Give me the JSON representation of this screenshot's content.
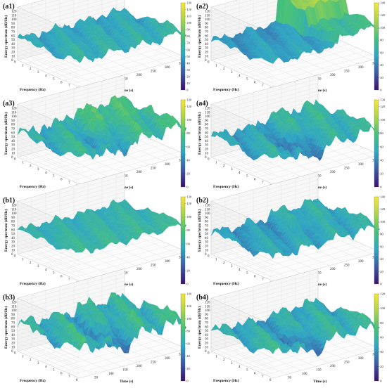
{
  "figure": {
    "panels": [
      {
        "label": "(a1)",
        "cbar": {
          "max": 130,
          "ticks": [
            130,
            120,
            110,
            100,
            90,
            80,
            70,
            60,
            50,
            40,
            30,
            20,
            10,
            0
          ]
        }
      },
      {
        "label": "(a2)",
        "cbar": {
          "max": 140,
          "ticks": [
            140,
            120,
            100,
            80,
            60,
            40,
            20,
            0
          ]
        }
      },
      {
        "label": "(a3)",
        "cbar": {
          "max": 130,
          "ticks": [
            130,
            120,
            100,
            80,
            60,
            40,
            20,
            0
          ]
        }
      },
      {
        "label": "(a4)",
        "cbar": {
          "max": 130,
          "ticks": [
            130,
            120,
            100,
            80,
            60,
            40,
            20,
            0
          ]
        }
      },
      {
        "label": "(b1)",
        "cbar": {
          "max": 130,
          "ticks": [
            130,
            120,
            100,
            80,
            60,
            40,
            20,
            0
          ]
        }
      },
      {
        "label": "(b2)",
        "cbar": {
          "max": 140,
          "ticks": [
            140,
            120,
            100,
            80,
            60,
            40,
            20,
            0
          ]
        }
      },
      {
        "label": "(b3)",
        "cbar": {
          "max": 140,
          "ticks": [
            140,
            120,
            100,
            80,
            60,
            40,
            20,
            0
          ]
        }
      },
      {
        "label": "(b4)",
        "cbar": {
          "max": 120,
          "ticks": [
            120,
            100,
            80,
            60,
            40,
            20,
            0
          ]
        }
      }
    ],
    "colorscale": [
      "#3b0f70",
      "#3b5ba8",
      "#2fa7c4",
      "#45c07a",
      "#a8d44a",
      "#f6e63a"
    ]
  },
  "chart_data": {
    "type": "surface",
    "xlabel": "Time (s)",
    "ylabel": "Frequency (Hz)",
    "zlabel": "Energy spectrum (dB/Hz)",
    "x_ticks": [
      50,
      100,
      150,
      200,
      250,
      300,
      350
    ],
    "y_ticks": [
      0,
      1,
      2,
      3,
      4,
      5,
      6,
      7,
      8
    ],
    "z_ticks": [
      0,
      10,
      20,
      30,
      40,
      50,
      60,
      70,
      80,
      90,
      100,
      110,
      120
    ],
    "zlim": [
      0,
      130
    ],
    "grid": true,
    "panels": [
      "(a1)",
      "(a2)",
      "(a3)",
      "(a4)",
      "(b1)",
      "(b2)",
      "(b3)",
      "(b4)"
    ],
    "panel_profiles": {
      "(a1)": {
        "base": 62,
        "amp": 12,
        "step_time": null,
        "step_height": 0,
        "dip": 0
      },
      "(a2)": {
        "base": 58,
        "amp": 10,
        "step_time": 230,
        "step_height": 60,
        "dip": 0
      },
      "(a3)": {
        "base": 66,
        "amp": 18,
        "step_time": 150,
        "step_height": 15,
        "dip": 20
      },
      "(a4)": {
        "base": 60,
        "amp": 16,
        "step_time": 150,
        "step_height": 10,
        "dip": 25
      },
      "(b1)": {
        "base": 68,
        "amp": 10,
        "step_time": null,
        "step_height": 0,
        "dip": 0
      },
      "(b2)": {
        "base": 60,
        "amp": 15,
        "step_time": 200,
        "step_height": 10,
        "dip": 0
      },
      "(b3)": {
        "base": 72,
        "amp": 22,
        "step_time": null,
        "step_height": 0,
        "dip": 30
      },
      "(b4)": {
        "base": 60,
        "amp": 15,
        "step_time": null,
        "step_height": 0,
        "dip": 25
      }
    }
  }
}
